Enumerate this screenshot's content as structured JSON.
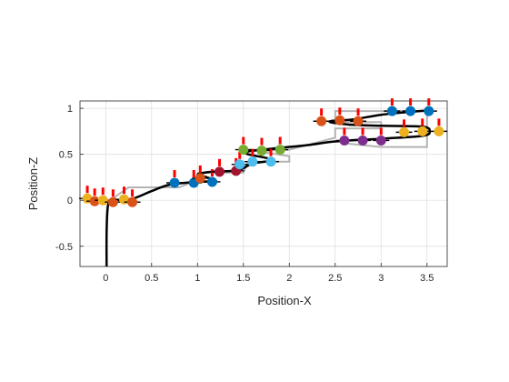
{
  "chart_data": {
    "type": "scatter",
    "title": "",
    "xlabel": "Position-X",
    "ylabel": "Position-Z",
    "xlim": [
      -0.28,
      3.72
    ],
    "ylim": [
      -0.72,
      1.08
    ],
    "xticks": [
      0,
      0.5,
      1,
      1.5,
      2,
      2.5,
      3,
      3.5
    ],
    "xtick_labels": [
      "0",
      "0.5",
      "1",
      "1.5",
      "2",
      "2.5",
      "3",
      "3.5"
    ],
    "yticks": [
      -0.5,
      0,
      0.5,
      1
    ],
    "ytick_labels": [
      "-0.5",
      "0",
      "0.5",
      "1"
    ],
    "grid": true,
    "colors": {
      "trajectory": "#000000",
      "steps": "#b3b3b3",
      "arrow": "#ff0000",
      "grid": "#dcdcdc",
      "axis": "#262626"
    },
    "steps_outline": [
      [
        -0.15,
        0.0
      ],
      [
        0.05,
        0.0
      ],
      [
        0.25,
        0.14
      ],
      [
        0.8,
        0.14
      ],
      [
        0.95,
        0.2
      ],
      [
        1.2,
        0.2
      ],
      [
        1.0,
        0.3
      ],
      [
        1.5,
        0.3
      ],
      [
        1.55,
        0.42
      ],
      [
        2.0,
        0.42
      ],
      [
        2.0,
        0.48
      ],
      [
        1.55,
        0.55
      ],
      [
        2.0,
        0.55
      ],
      [
        2.5,
        0.68
      ],
      [
        2.5,
        0.78
      ],
      [
        3.0,
        0.78
      ],
      [
        3.0,
        0.85
      ],
      [
        2.5,
        0.85
      ],
      [
        2.5,
        0.97
      ],
      [
        3.5,
        0.97
      ],
      [
        3.5,
        0.58
      ],
      [
        3.0,
        0.58
      ],
      [
        2.6,
        0.62
      ]
    ],
    "trajectory": [
      [
        0.01,
        -0.72
      ],
      [
        0.01,
        -0.35
      ],
      [
        0.02,
        -0.1
      ],
      [
        0.04,
        -0.02
      ],
      [
        0.1,
        0.0
      ],
      [
        0.3,
        0.02
      ],
      [
        0.5,
        0.1
      ],
      [
        0.7,
        0.17
      ],
      [
        1.0,
        0.2
      ],
      [
        1.2,
        0.21
      ],
      [
        1.1,
        0.25
      ],
      [
        1.0,
        0.28
      ],
      [
        1.15,
        0.31
      ],
      [
        1.4,
        0.32
      ],
      [
        1.5,
        0.35
      ],
      [
        1.6,
        0.4
      ],
      [
        1.8,
        0.43
      ],
      [
        1.75,
        0.46
      ],
      [
        1.55,
        0.5
      ],
      [
        1.55,
        0.53
      ],
      [
        1.8,
        0.56
      ],
      [
        2.2,
        0.6
      ],
      [
        2.5,
        0.64
      ],
      [
        3.0,
        0.67
      ],
      [
        3.45,
        0.7
      ],
      [
        3.53,
        0.75
      ],
      [
        3.45,
        0.8
      ],
      [
        3.0,
        0.81
      ],
      [
        2.7,
        0.82
      ],
      [
        2.5,
        0.84
      ],
      [
        2.45,
        0.86
      ],
      [
        2.7,
        0.88
      ],
      [
        3.0,
        0.93
      ],
      [
        3.3,
        0.96
      ],
      [
        3.55,
        0.98
      ]
    ],
    "points": [
      {
        "x": -0.2,
        "y": 0.02,
        "color": "#EDB120"
      },
      {
        "x": -0.12,
        "y": -0.01,
        "color": "#D95319"
      },
      {
        "x": -0.03,
        "y": 0.0,
        "color": "#EDB120"
      },
      {
        "x": 0.08,
        "y": -0.02,
        "color": "#D95319"
      },
      {
        "x": 0.2,
        "y": 0.01,
        "color": "#EDB120"
      },
      {
        "x": 0.29,
        "y": -0.02,
        "color": "#D95319"
      },
      {
        "x": 0.75,
        "y": 0.19,
        "color": "#0072BD"
      },
      {
        "x": 0.96,
        "y": 0.19,
        "color": "#0072BD"
      },
      {
        "x": 1.03,
        "y": 0.24,
        "color": "#D95319"
      },
      {
        "x": 1.16,
        "y": 0.2,
        "color": "#0072BD"
      },
      {
        "x": 1.24,
        "y": 0.31,
        "color": "#A2142F"
      },
      {
        "x": 1.42,
        "y": 0.32,
        "color": "#A2142F"
      },
      {
        "x": 1.46,
        "y": 0.39,
        "color": "#4DBEEE"
      },
      {
        "x": 1.6,
        "y": 0.42,
        "color": "#4DBEEE"
      },
      {
        "x": 1.8,
        "y": 0.42,
        "color": "#4DBEEE"
      },
      {
        "x": 1.5,
        "y": 0.55,
        "color": "#77AC30"
      },
      {
        "x": 1.7,
        "y": 0.54,
        "color": "#77AC30"
      },
      {
        "x": 1.9,
        "y": 0.55,
        "color": "#77AC30"
      },
      {
        "x": 2.35,
        "y": 0.86,
        "color": "#D95319"
      },
      {
        "x": 2.55,
        "y": 0.87,
        "color": "#D95319"
      },
      {
        "x": 2.75,
        "y": 0.86,
        "color": "#D95319"
      },
      {
        "x": 2.6,
        "y": 0.65,
        "color": "#7E2F8E"
      },
      {
        "x": 2.8,
        "y": 0.65,
        "color": "#7E2F8E"
      },
      {
        "x": 3.0,
        "y": 0.65,
        "color": "#7E2F8E"
      },
      {
        "x": 3.12,
        "y": 0.97,
        "color": "#0072BD"
      },
      {
        "x": 3.32,
        "y": 0.97,
        "color": "#0072BD"
      },
      {
        "x": 3.52,
        "y": 0.97,
        "color": "#0072BD"
      },
      {
        "x": 3.25,
        "y": 0.74,
        "color": "#EDB120"
      },
      {
        "x": 3.45,
        "y": 0.75,
        "color": "#EDB120"
      },
      {
        "x": 3.63,
        "y": 0.75,
        "color": "#EDB120"
      }
    ]
  }
}
